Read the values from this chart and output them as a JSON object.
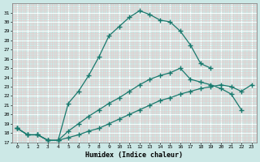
{
  "xlabel": "Humidex (Indice chaleur)",
  "bg_color": "#cce8e6",
  "grid_color": "#b8d8d4",
  "line_color": "#1a7a6e",
  "xlim": [
    -0.5,
    23.5
  ],
  "ylim": [
    17,
    32
  ],
  "xticks": [
    0,
    1,
    2,
    3,
    4,
    5,
    6,
    7,
    8,
    9,
    10,
    11,
    12,
    13,
    14,
    15,
    16,
    17,
    18,
    19,
    20,
    21,
    22,
    23
  ],
  "yticks": [
    17,
    18,
    19,
    20,
    21,
    22,
    23,
    24,
    25,
    26,
    27,
    28,
    29,
    30,
    31
  ],
  "series": [
    {
      "x": [
        0,
        1,
        2,
        3,
        4,
        5,
        6,
        7,
        8,
        9,
        10,
        11,
        12,
        13,
        14,
        15,
        16,
        17,
        18,
        19
      ],
      "y": [
        18.5,
        17.8,
        17.8,
        17.2,
        17.2,
        21.2,
        22.5,
        24.2,
        26.2,
        28.5,
        29.5,
        30.5,
        31.2,
        30.8,
        30.2,
        30.0,
        29.0,
        27.5,
        25.5,
        25.0
      ]
    },
    {
      "x": [
        0,
        1,
        2,
        3,
        4,
        5,
        6,
        7,
        8,
        9,
        10,
        11,
        12,
        13,
        14,
        15,
        16,
        17,
        18,
        19,
        20,
        21,
        22
      ],
      "y": [
        18.5,
        17.8,
        17.8,
        17.2,
        17.2,
        18.2,
        19.0,
        19.8,
        20.5,
        21.2,
        21.8,
        22.5,
        23.2,
        23.8,
        24.2,
        24.5,
        25.0,
        23.8,
        23.5,
        23.2,
        22.8,
        22.2,
        20.5
      ]
    },
    {
      "x": [
        0,
        1,
        2,
        3,
        4,
        5,
        6,
        7,
        8,
        9,
        10,
        11,
        12,
        13,
        14,
        15,
        16,
        17,
        18,
        19,
        20,
        21,
        22,
        23
      ],
      "y": [
        18.5,
        17.8,
        17.8,
        17.2,
        17.2,
        17.5,
        17.8,
        18.2,
        18.5,
        19.0,
        19.5,
        20.0,
        20.5,
        21.0,
        21.5,
        21.8,
        22.2,
        22.5,
        22.8,
        23.0,
        23.2,
        23.0,
        22.5,
        23.2
      ]
    }
  ]
}
